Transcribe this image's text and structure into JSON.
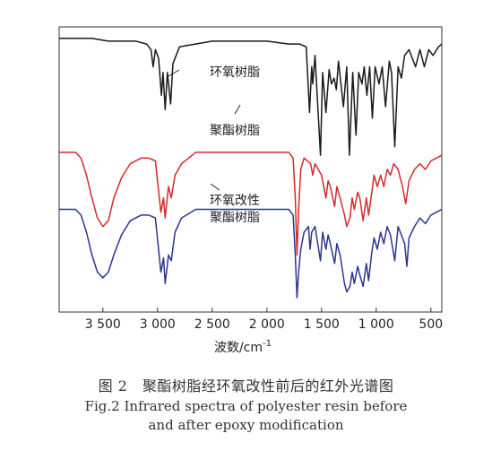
{
  "figure": {
    "caption_cn": "图 2　聚酯树脂经环氧改性前后的红外光谱图",
    "caption_en_line1": "Fig.2 Infrared spectra of polyester resin before",
    "caption_en_line2": "and after epoxy modification"
  },
  "chart_data": {
    "type": "line",
    "xlabel": "波数/cm",
    "x_reversed": true,
    "xlim": [
      3900,
      400
    ],
    "xticks": [
      3500,
      3000,
      2500,
      2000,
      1500,
      1000,
      500
    ],
    "xtick_labels": [
      "3 500",
      "3 000",
      "2 500",
      "2 000",
      "1 500",
      "1 000",
      "500"
    ],
    "y_ticks_shown": false,
    "grid": false,
    "series": [
      {
        "name": "环氧树脂",
        "color": "#1a1a1a",
        "points": [
          [
            3900,
            0.96
          ],
          [
            3600,
            0.96
          ],
          [
            3450,
            0.95
          ],
          [
            3200,
            0.95
          ],
          [
            3100,
            0.94
          ],
          [
            3060,
            0.92
          ],
          [
            3040,
            0.86
          ],
          [
            3020,
            0.92
          ],
          [
            2990,
            0.89
          ],
          [
            2965,
            0.76
          ],
          [
            2950,
            0.84
          ],
          [
            2930,
            0.71
          ],
          [
            2910,
            0.84
          ],
          [
            2880,
            0.73
          ],
          [
            2860,
            0.87
          ],
          [
            2800,
            0.93
          ],
          [
            2500,
            0.95
          ],
          [
            2000,
            0.95
          ],
          [
            1800,
            0.94
          ],
          [
            1700,
            0.94
          ],
          [
            1640,
            0.93
          ],
          [
            1610,
            0.7
          ],
          [
            1590,
            0.86
          ],
          [
            1580,
            0.8
          ],
          [
            1560,
            0.9
          ],
          [
            1510,
            0.55
          ],
          [
            1490,
            0.84
          ],
          [
            1460,
            0.7
          ],
          [
            1430,
            0.85
          ],
          [
            1410,
            0.8
          ],
          [
            1385,
            0.82
          ],
          [
            1365,
            0.78
          ],
          [
            1345,
            0.88
          ],
          [
            1300,
            0.72
          ],
          [
            1270,
            0.86
          ],
          [
            1245,
            0.55
          ],
          [
            1215,
            0.84
          ],
          [
            1185,
            0.62
          ],
          [
            1160,
            0.84
          ],
          [
            1130,
            0.8
          ],
          [
            1110,
            0.86
          ],
          [
            1085,
            0.76
          ],
          [
            1060,
            0.86
          ],
          [
            1035,
            0.68
          ],
          [
            1010,
            0.86
          ],
          [
            975,
            0.8
          ],
          [
            945,
            0.86
          ],
          [
            915,
            0.72
          ],
          [
            880,
            0.88
          ],
          [
            860,
            0.84
          ],
          [
            830,
            0.58
          ],
          [
            800,
            0.86
          ],
          [
            770,
            0.82
          ],
          [
            740,
            0.9
          ],
          [
            700,
            0.92
          ],
          [
            640,
            0.86
          ],
          [
            600,
            0.92
          ],
          [
            560,
            0.86
          ],
          [
            520,
            0.92
          ],
          [
            480,
            0.9
          ],
          [
            430,
            0.93
          ],
          [
            400,
            0.94
          ]
        ]
      },
      {
        "name": "聚酯树脂",
        "color": "#d42a2a",
        "points": [
          [
            3900,
            0.56
          ],
          [
            3750,
            0.56
          ],
          [
            3700,
            0.54
          ],
          [
            3650,
            0.48
          ],
          [
            3600,
            0.4
          ],
          [
            3550,
            0.33
          ],
          [
            3500,
            0.3
          ],
          [
            3450,
            0.32
          ],
          [
            3400,
            0.4
          ],
          [
            3330,
            0.47
          ],
          [
            3250,
            0.52
          ],
          [
            3150,
            0.54
          ],
          [
            3080,
            0.54
          ],
          [
            3020,
            0.53
          ],
          [
            2970,
            0.35
          ],
          [
            2945,
            0.4
          ],
          [
            2930,
            0.33
          ],
          [
            2900,
            0.44
          ],
          [
            2875,
            0.4
          ],
          [
            2840,
            0.48
          ],
          [
            2780,
            0.52
          ],
          [
            2650,
            0.56
          ],
          [
            2500,
            0.56
          ],
          [
            2000,
            0.56
          ],
          [
            1800,
            0.56
          ],
          [
            1760,
            0.54
          ],
          [
            1740,
            0.4
          ],
          [
            1725,
            0.2
          ],
          [
            1710,
            0.36
          ],
          [
            1690,
            0.5
          ],
          [
            1660,
            0.54
          ],
          [
            1600,
            0.52
          ],
          [
            1580,
            0.48
          ],
          [
            1560,
            0.52
          ],
          [
            1500,
            0.48
          ],
          [
            1460,
            0.4
          ],
          [
            1440,
            0.46
          ],
          [
            1420,
            0.44
          ],
          [
            1380,
            0.37
          ],
          [
            1360,
            0.44
          ],
          [
            1330,
            0.4
          ],
          [
            1290,
            0.34
          ],
          [
            1270,
            0.3
          ],
          [
            1240,
            0.33
          ],
          [
            1220,
            0.4
          ],
          [
            1200,
            0.36
          ],
          [
            1170,
            0.42
          ],
          [
            1150,
            0.4
          ],
          [
            1120,
            0.32
          ],
          [
            1090,
            0.4
          ],
          [
            1070,
            0.34
          ],
          [
            1040,
            0.42
          ],
          [
            1020,
            0.48
          ],
          [
            990,
            0.44
          ],
          [
            960,
            0.48
          ],
          [
            930,
            0.44
          ],
          [
            900,
            0.5
          ],
          [
            870,
            0.48
          ],
          [
            840,
            0.52
          ],
          [
            800,
            0.5
          ],
          [
            760,
            0.44
          ],
          [
            730,
            0.38
          ],
          [
            700,
            0.46
          ],
          [
            650,
            0.5
          ],
          [
            600,
            0.52
          ],
          [
            550,
            0.5
          ],
          [
            500,
            0.53
          ],
          [
            450,
            0.54
          ],
          [
            400,
            0.55
          ]
        ]
      },
      {
        "name": "环氧改性聚酯树脂",
        "color": "#2c3590",
        "points": [
          [
            3900,
            0.36
          ],
          [
            3750,
            0.36
          ],
          [
            3700,
            0.34
          ],
          [
            3650,
            0.28
          ],
          [
            3600,
            0.2
          ],
          [
            3550,
            0.14
          ],
          [
            3500,
            0.12
          ],
          [
            3450,
            0.14
          ],
          [
            3400,
            0.2
          ],
          [
            3330,
            0.27
          ],
          [
            3250,
            0.32
          ],
          [
            3150,
            0.34
          ],
          [
            3080,
            0.34
          ],
          [
            3020,
            0.33
          ],
          [
            2970,
            0.14
          ],
          [
            2945,
            0.19
          ],
          [
            2930,
            0.1
          ],
          [
            2900,
            0.2
          ],
          [
            2875,
            0.18
          ],
          [
            2840,
            0.28
          ],
          [
            2780,
            0.33
          ],
          [
            2650,
            0.36
          ],
          [
            2500,
            0.36
          ],
          [
            2000,
            0.36
          ],
          [
            1800,
            0.36
          ],
          [
            1760,
            0.34
          ],
          [
            1740,
            0.2
          ],
          [
            1725,
            0.05
          ],
          [
            1710,
            0.14
          ],
          [
            1690,
            0.22
          ],
          [
            1660,
            0.28
          ],
          [
            1620,
            0.3
          ],
          [
            1605,
            0.22
          ],
          [
            1590,
            0.28
          ],
          [
            1560,
            0.3
          ],
          [
            1510,
            0.18
          ],
          [
            1490,
            0.28
          ],
          [
            1460,
            0.22
          ],
          [
            1440,
            0.27
          ],
          [
            1420,
            0.24
          ],
          [
            1380,
            0.17
          ],
          [
            1360,
            0.24
          ],
          [
            1330,
            0.2
          ],
          [
            1290,
            0.1
          ],
          [
            1270,
            0.07
          ],
          [
            1240,
            0.09
          ],
          [
            1220,
            0.14
          ],
          [
            1200,
            0.1
          ],
          [
            1170,
            0.16
          ],
          [
            1150,
            0.13
          ],
          [
            1120,
            0.09
          ],
          [
            1090,
            0.17
          ],
          [
            1070,
            0.11
          ],
          [
            1040,
            0.21
          ],
          [
            1020,
            0.26
          ],
          [
            990,
            0.22
          ],
          [
            960,
            0.28
          ],
          [
            930,
            0.24
          ],
          [
            900,
            0.3
          ],
          [
            870,
            0.27
          ],
          [
            830,
            0.18
          ],
          [
            800,
            0.3
          ],
          [
            770,
            0.27
          ],
          [
            740,
            0.24
          ],
          [
            720,
            0.16
          ],
          [
            700,
            0.26
          ],
          [
            650,
            0.3
          ],
          [
            600,
            0.33
          ],
          [
            550,
            0.31
          ],
          [
            500,
            0.34
          ],
          [
            450,
            0.35
          ],
          [
            400,
            0.36
          ]
        ]
      }
    ]
  }
}
